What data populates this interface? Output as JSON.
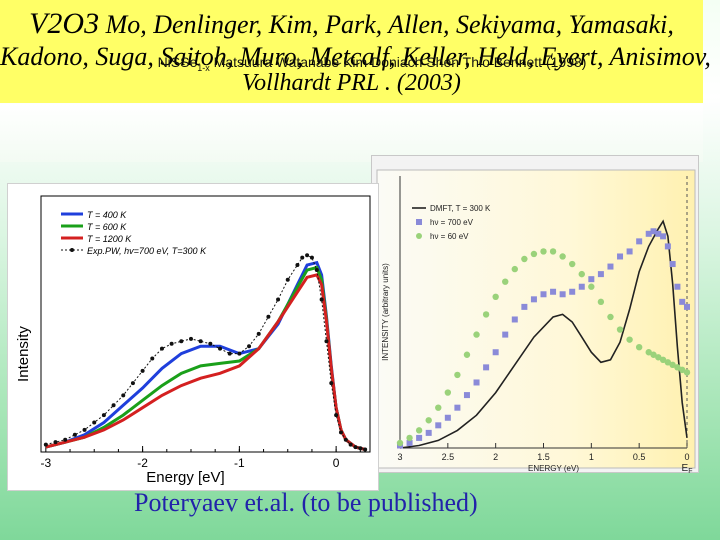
{
  "header": {
    "line1_title": "V2O3",
    "line1_authors": " Mo, Denlinger, Kim, Park, Allen, Sekiyama, Yamasaki,",
    "line2": "Kadono, Suga, Saitoh, Muro, Metcalf, Keller, Held, Eyert, Anisimov,",
    "line3": "Vollhardt PRL . (2003)",
    "overlay_prefix": "NiSSe",
    "overlay_sub": "1-x",
    "overlay_rest": " Matsuura Watanabe Kim Doniach Shen Thio Bennett (1998)",
    "background_color": "#ffff66"
  },
  "caption": "Poteryaev et.al. (to be published)",
  "chart_data": [
    {
      "type": "line",
      "xlabel": "Energy [eV]",
      "ylabel": "Intensity",
      "xlim": [
        -3.05,
        0.35
      ],
      "ylim": [
        0,
        1.0
      ],
      "x_ticks": [
        -3,
        -2,
        -1,
        0
      ],
      "x_tick_labels": [
        "-3",
        "-2",
        "-1",
        "0"
      ],
      "grid": false,
      "legend_position": "top-left",
      "series": [
        {
          "name": "T = 400 K",
          "color": "#1f3fdc",
          "x": [
            -3.0,
            -2.8,
            -2.6,
            -2.4,
            -2.2,
            -2.0,
            -1.8,
            -1.6,
            -1.4,
            -1.2,
            -1.0,
            -0.8,
            -0.6,
            -0.4,
            -0.3,
            -0.2,
            -0.15,
            -0.1,
            -0.05,
            0.0,
            0.05,
            0.1,
            0.2,
            0.3
          ],
          "y": [
            0.02,
            0.04,
            0.07,
            0.12,
            0.19,
            0.26,
            0.34,
            0.4,
            0.43,
            0.43,
            0.4,
            0.42,
            0.52,
            0.68,
            0.76,
            0.77,
            0.72,
            0.55,
            0.35,
            0.18,
            0.09,
            0.05,
            0.02,
            0.01
          ]
        },
        {
          "name": "T = 600 K",
          "color": "#1aa01a",
          "x": [
            -3.0,
            -2.8,
            -2.6,
            -2.4,
            -2.2,
            -2.0,
            -1.8,
            -1.6,
            -1.4,
            -1.2,
            -1.0,
            -0.8,
            -0.6,
            -0.4,
            -0.3,
            -0.2,
            -0.15,
            -0.1,
            -0.05,
            0.0,
            0.05,
            0.1,
            0.2,
            0.3
          ],
          "y": [
            0.02,
            0.04,
            0.06,
            0.1,
            0.15,
            0.21,
            0.27,
            0.32,
            0.35,
            0.36,
            0.37,
            0.42,
            0.53,
            0.67,
            0.74,
            0.75,
            0.7,
            0.54,
            0.34,
            0.18,
            0.09,
            0.05,
            0.02,
            0.01
          ]
        },
        {
          "name": "T = 1200 K",
          "color": "#d42020",
          "x": [
            -3.0,
            -2.8,
            -2.6,
            -2.4,
            -2.2,
            -2.0,
            -1.8,
            -1.6,
            -1.4,
            -1.2,
            -1.0,
            -0.8,
            -0.6,
            -0.4,
            -0.3,
            -0.2,
            -0.15,
            -0.1,
            -0.05,
            0.0,
            0.05,
            0.1,
            0.2,
            0.3
          ],
          "y": [
            0.02,
            0.04,
            0.06,
            0.09,
            0.13,
            0.18,
            0.23,
            0.27,
            0.3,
            0.32,
            0.35,
            0.42,
            0.53,
            0.65,
            0.71,
            0.72,
            0.68,
            0.53,
            0.34,
            0.18,
            0.09,
            0.05,
            0.02,
            0.01
          ]
        },
        {
          "name": "Exp.PW, hv=700 eV, T=300 K",
          "color": "#111111",
          "x": [
            -3.0,
            -2.9,
            -2.8,
            -2.7,
            -2.6,
            -2.5,
            -2.4,
            -2.3,
            -2.2,
            -2.1,
            -2.0,
            -1.9,
            -1.8,
            -1.7,
            -1.6,
            -1.5,
            -1.4,
            -1.3,
            -1.2,
            -1.1,
            -1.0,
            -0.9,
            -0.8,
            -0.7,
            -0.6,
            -0.5,
            -0.4,
            -0.35,
            -0.3,
            -0.25,
            -0.2,
            -0.15,
            -0.1,
            -0.05,
            0.0,
            0.05,
            0.1,
            0.15,
            0.2,
            0.25,
            0.3
          ],
          "y": [
            0.03,
            0.04,
            0.05,
            0.07,
            0.09,
            0.12,
            0.15,
            0.19,
            0.23,
            0.28,
            0.33,
            0.38,
            0.42,
            0.44,
            0.45,
            0.46,
            0.45,
            0.44,
            0.42,
            0.4,
            0.4,
            0.43,
            0.48,
            0.55,
            0.62,
            0.7,
            0.76,
            0.79,
            0.8,
            0.79,
            0.74,
            0.62,
            0.45,
            0.28,
            0.15,
            0.08,
            0.05,
            0.03,
            0.02,
            0.015,
            0.01
          ]
        }
      ]
    },
    {
      "type": "line",
      "xlabel": "ENERGY (eV)",
      "ylabel": "INTENSITY (arbitrary units)",
      "xlim": [
        3.0,
        0.0
      ],
      "ylim": [
        0,
        1.0
      ],
      "x_ticks": [
        3,
        2.5,
        2,
        1.5,
        1,
        0.5,
        0
      ],
      "x_tick_labels": [
        "3",
        "2.5",
        "2",
        "1.5",
        "1",
        "0.5",
        "0"
      ],
      "fermi_label": "E",
      "fermi_sub": "F",
      "grid": false,
      "legend_position": "top-left",
      "series": [
        {
          "name": "DMFT, T = 300 K",
          "color": "#222222",
          "x": [
            3.0,
            2.8,
            2.6,
            2.4,
            2.2,
            2.0,
            1.8,
            1.6,
            1.4,
            1.3,
            1.2,
            1.1,
            1.0,
            0.9,
            0.8,
            0.7,
            0.6,
            0.5,
            0.4,
            0.3,
            0.25,
            0.2,
            0.15,
            0.1,
            0.05,
            0.0
          ],
          "y": [
            0.0,
            0.01,
            0.03,
            0.07,
            0.13,
            0.22,
            0.33,
            0.44,
            0.52,
            0.53,
            0.5,
            0.44,
            0.38,
            0.34,
            0.35,
            0.42,
            0.55,
            0.7,
            0.8,
            0.87,
            0.9,
            0.84,
            0.65,
            0.4,
            0.18,
            0.04
          ]
        },
        {
          "name": "hν = 700 eV",
          "color": "#8a8ad8",
          "x": [
            3.0,
            2.9,
            2.8,
            2.7,
            2.6,
            2.5,
            2.4,
            2.3,
            2.2,
            2.1,
            2.0,
            1.9,
            1.8,
            1.7,
            1.6,
            1.5,
            1.4,
            1.3,
            1.2,
            1.1,
            1.0,
            0.9,
            0.8,
            0.7,
            0.6,
            0.5,
            0.4,
            0.35,
            0.3,
            0.25,
            0.2,
            0.15,
            0.1,
            0.05,
            0.0
          ],
          "y": [
            0.01,
            0.02,
            0.04,
            0.06,
            0.09,
            0.12,
            0.16,
            0.21,
            0.26,
            0.32,
            0.38,
            0.45,
            0.51,
            0.56,
            0.59,
            0.61,
            0.62,
            0.61,
            0.62,
            0.64,
            0.67,
            0.69,
            0.72,
            0.76,
            0.78,
            0.82,
            0.85,
            0.86,
            0.85,
            0.84,
            0.8,
            0.73,
            0.64,
            0.58,
            0.56
          ]
        },
        {
          "name": "hν = 60 eV",
          "color": "#9ad27a",
          "x": [
            3.0,
            2.9,
            2.8,
            2.7,
            2.6,
            2.5,
            2.4,
            2.3,
            2.2,
            2.1,
            2.0,
            1.9,
            1.8,
            1.7,
            1.6,
            1.5,
            1.4,
            1.3,
            1.2,
            1.1,
            1.0,
            0.9,
            0.8,
            0.7,
            0.6,
            0.5,
            0.4,
            0.35,
            0.3,
            0.25,
            0.2,
            0.15,
            0.1,
            0.05,
            0.0
          ],
          "y": [
            0.02,
            0.04,
            0.07,
            0.11,
            0.16,
            0.22,
            0.29,
            0.37,
            0.45,
            0.53,
            0.6,
            0.66,
            0.71,
            0.75,
            0.77,
            0.78,
            0.78,
            0.76,
            0.73,
            0.69,
            0.64,
            0.58,
            0.52,
            0.47,
            0.43,
            0.4,
            0.38,
            0.37,
            0.36,
            0.35,
            0.34,
            0.33,
            0.32,
            0.31,
            0.3
          ]
        }
      ]
    }
  ]
}
